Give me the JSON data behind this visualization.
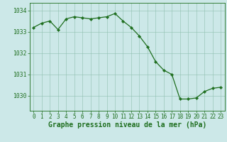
{
  "x": [
    0,
    1,
    2,
    3,
    4,
    5,
    6,
    7,
    8,
    9,
    10,
    11,
    12,
    13,
    14,
    15,
    16,
    17,
    18,
    19,
    20,
    21,
    22,
    23
  ],
  "y": [
    1033.2,
    1033.4,
    1033.5,
    1033.1,
    1033.6,
    1033.7,
    1033.65,
    1033.6,
    1033.65,
    1033.7,
    1033.85,
    1033.5,
    1033.2,
    1032.8,
    1032.3,
    1031.6,
    1031.2,
    1031.0,
    1029.85,
    1029.85,
    1029.9,
    1030.2,
    1030.35,
    1030.4
  ],
  "line_color": "#1e6e1e",
  "marker": "D",
  "marker_size": 2.2,
  "bg_color": "#cce8e8",
  "grid_color": "#8fbfb0",
  "title": "Graphe pression niveau de la mer (hPa)",
  "title_color": "#1e6e1e",
  "title_fontsize": 7.0,
  "ylabel_ticks": [
    1030,
    1031,
    1032,
    1033,
    1034
  ],
  "ylim": [
    1029.3,
    1034.35
  ],
  "xlim": [
    -0.5,
    23.5
  ],
  "xtick_labels": [
    "0",
    "1",
    "2",
    "3",
    "4",
    "5",
    "6",
    "7",
    "8",
    "9",
    "10",
    "11",
    "12",
    "13",
    "14",
    "15",
    "16",
    "17",
    "18",
    "19",
    "20",
    "21",
    "22",
    "23"
  ],
  "tick_color": "#1e6e1e",
  "tick_fontsize": 5.5,
  "ytick_fontsize": 5.8,
  "border_color": "#1e6e1e",
  "linewidth": 0.9
}
